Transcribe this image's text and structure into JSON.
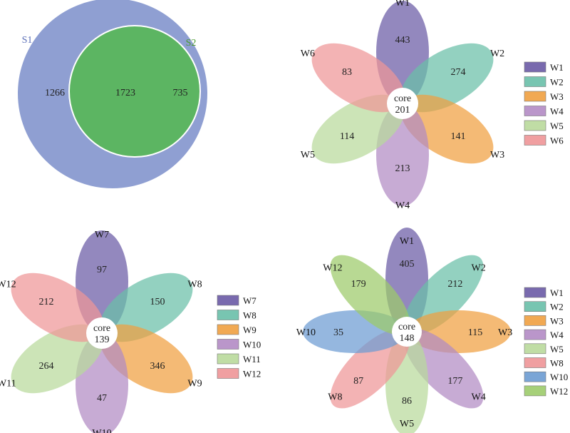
{
  "venn": {
    "sets": [
      {
        "name": "S1",
        "color": "#8f9fd2",
        "label_color": "#5b6fb8"
      },
      {
        "name": "S2",
        "color": "#5dac3f",
        "label_color": "#4c9a2e"
      }
    ],
    "only_s1": "1266",
    "shared": "1723",
    "only_s2": "735",
    "overlap_color": "#5cb562"
  },
  "flowers": [
    {
      "id": "flower-a",
      "core_label": "core",
      "core_value": "201",
      "petals": [
        {
          "name": "W1",
          "value": "443",
          "color": "#6a5aa5"
        },
        {
          "name": "W2",
          "value": "274",
          "color": "#69bfa8"
        },
        {
          "name": "W3",
          "value": "141",
          "color": "#f0a040"
        },
        {
          "name": "W4",
          "value": "213",
          "color": "#b28bc4"
        },
        {
          "name": "W5",
          "value": "114",
          "color": "#b9d99b"
        },
        {
          "name": "W6",
          "value": "83",
          "color": "#ee9597"
        }
      ],
      "legend": [
        "W1",
        "W2",
        "W3",
        "W4",
        "W5",
        "W6"
      ]
    },
    {
      "id": "flower-b",
      "core_label": "core",
      "core_value": "139",
      "petals": [
        {
          "name": "W7",
          "value": "97",
          "color": "#6a5aa5"
        },
        {
          "name": "W8",
          "value": "150",
          "color": "#69bfa8"
        },
        {
          "name": "W9",
          "value": "346",
          "color": "#f0a040"
        },
        {
          "name": "W10",
          "value": "47",
          "color": "#b28bc4"
        },
        {
          "name": "W11",
          "value": "264",
          "color": "#b9d99b"
        },
        {
          "name": "W12",
          "value": "212",
          "color": "#ee9597"
        }
      ],
      "legend": [
        "W7",
        "W8",
        "W9",
        "W10",
        "W11",
        "W12"
      ]
    },
    {
      "id": "flower-c",
      "core_label": "core",
      "core_value": "148",
      "petals": [
        {
          "name": "W1",
          "value": "405",
          "color": "#6a5aa5"
        },
        {
          "name": "W2",
          "value": "212",
          "color": "#69bfa8"
        },
        {
          "name": "W3",
          "value": "115",
          "color": "#f0a040"
        },
        {
          "name": "W4",
          "value": "177",
          "color": "#b28bc4"
        },
        {
          "name": "W5",
          "value": "86",
          "color": "#b9d99b"
        },
        {
          "name": "W8",
          "value": "87",
          "color": "#ee9597"
        },
        {
          "name": "W10",
          "value": "35",
          "color": "#6c9bd2"
        },
        {
          "name": "W12",
          "value": "179",
          "color": "#9ccb6a"
        }
      ],
      "legend": [
        "W1",
        "W2",
        "W3",
        "W4",
        "W5",
        "W8",
        "W10",
        "W12"
      ]
    }
  ]
}
